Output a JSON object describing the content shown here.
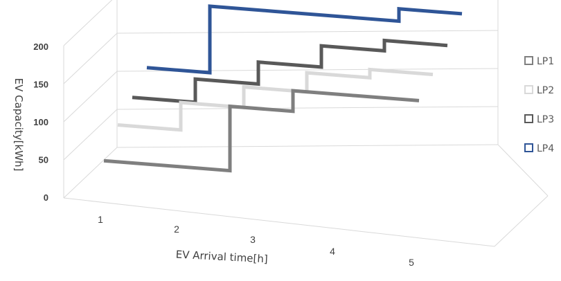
{
  "chart_data": {
    "type": "line",
    "subtype": "3d-step",
    "xlabel": "EV Arrival time[h]",
    "ylabel": "EV Capacity[kWh]",
    "ylim": [
      0,
      200
    ],
    "yticks": [
      "0",
      "50",
      "100",
      "150",
      "200"
    ],
    "x": [
      "1",
      "2",
      "3",
      "4",
      "5"
    ],
    "grid": true,
    "legend_position": "right",
    "series": [
      {
        "name": "LP1",
        "color": "#7f7f7f",
        "values": [
          26,
          26,
          120,
          150,
          150
        ]
      },
      {
        "name": "LP2",
        "color": "#d9d9d9",
        "values": [
          52,
          92,
          122,
          150,
          162
        ]
      },
      {
        "name": "LP3",
        "color": "#595959",
        "values": [
          66,
          100,
          132,
          163,
          178
        ]
      },
      {
        "name": "LP4",
        "color": "#2f5597",
        "values": [
          83,
          180,
          180,
          180,
          198
        ]
      }
    ]
  }
}
